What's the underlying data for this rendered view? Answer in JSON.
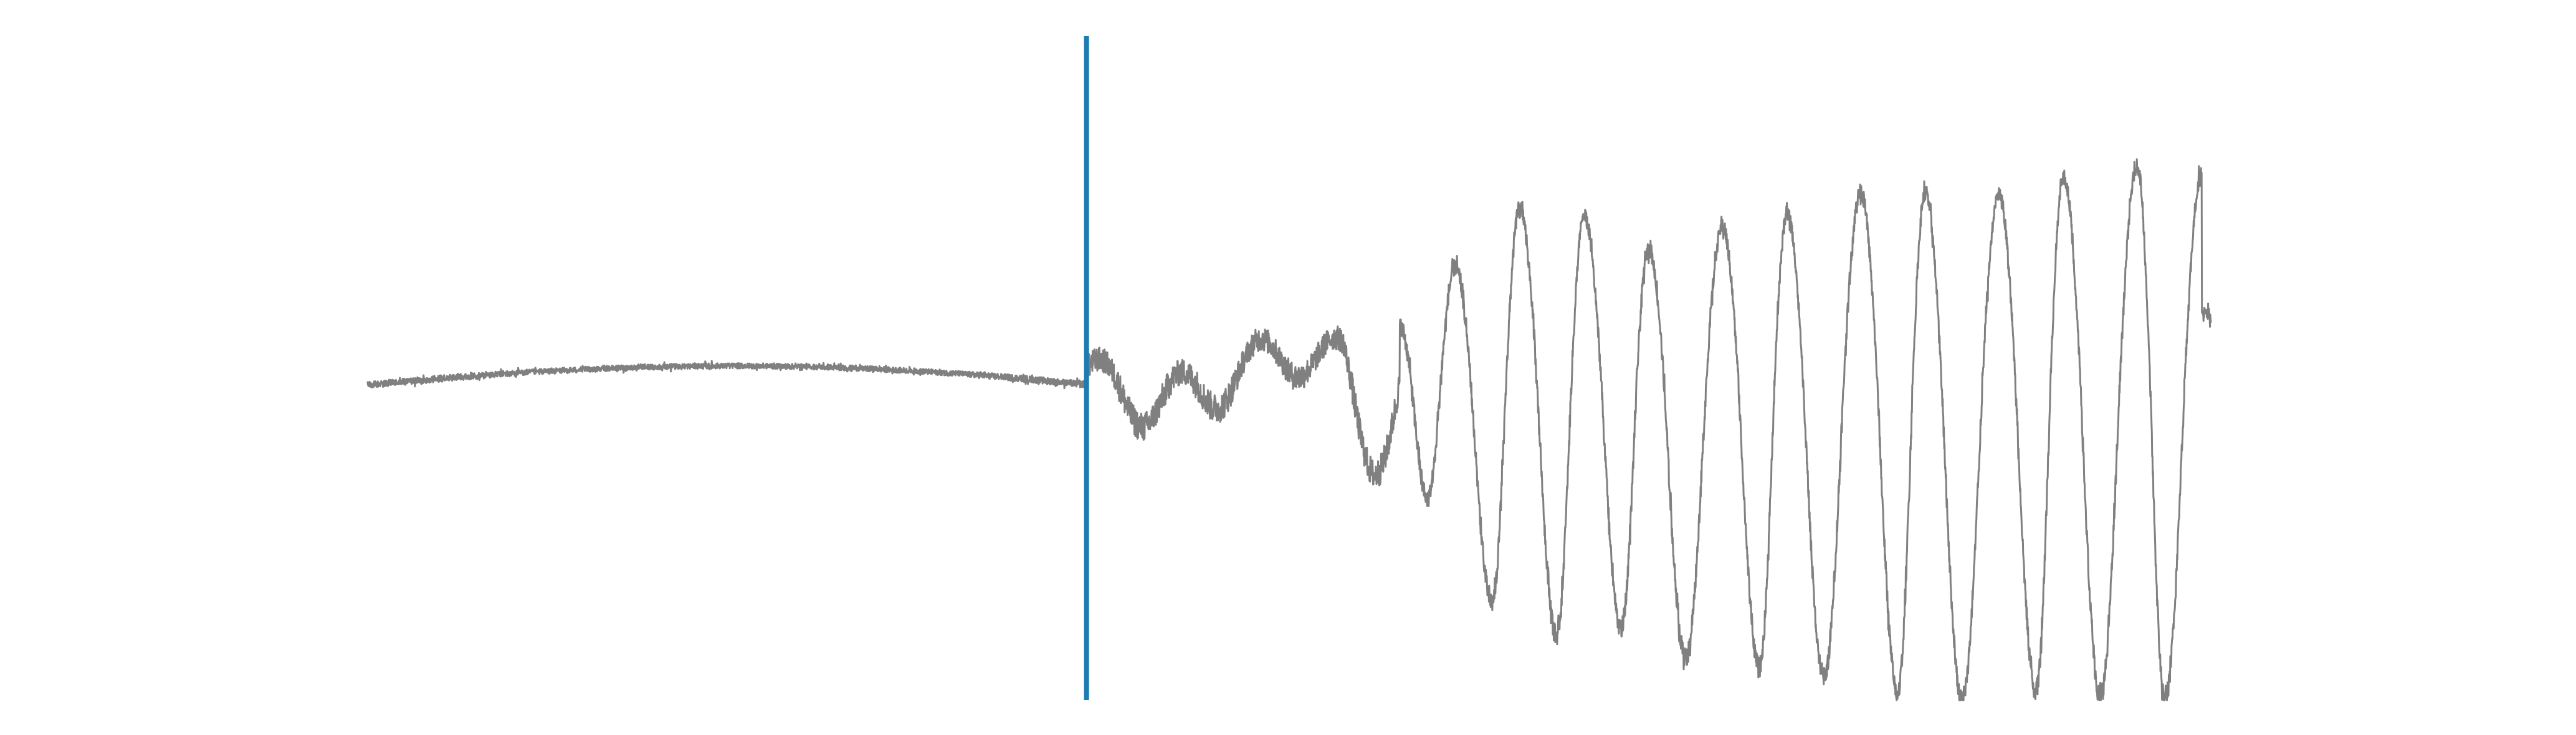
{
  "chart_data": {
    "type": "line",
    "title": "",
    "xlabel": "",
    "ylabel": "",
    "grid": false,
    "legend": "none",
    "xlim": [
      0,
      1
    ],
    "ylim": [
      -1,
      1
    ],
    "playhead_position": 0.39,
    "series": [
      {
        "color": "#808080",
        "segments": [
          {
            "x": [
              0.0,
              0.39
            ],
            "style": "quiet-drift",
            "amplitude": 0.02,
            "drift": [
              -0.06,
              0.06,
              0.0
            ]
          },
          {
            "x": [
              0.39,
              0.56
            ],
            "style": "noisy-low-oscillation",
            "amplitude": 0.14,
            "cycles": 4
          },
          {
            "x": [
              0.56,
              1.0
            ],
            "style": "large-oscillation",
            "amplitude_start": 0.55,
            "amplitude_end": 0.95,
            "cycles": 11.5
          }
        ],
        "peaks": [
          {
            "x": 0.59,
            "y": 0.4
          },
          {
            "x": 0.625,
            "y": 0.62
          },
          {
            "x": 0.66,
            "y": 0.59
          },
          {
            "x": 0.695,
            "y": 0.47
          },
          {
            "x": 0.735,
            "y": 0.55
          },
          {
            "x": 0.77,
            "y": 0.6
          },
          {
            "x": 0.81,
            "y": 0.68
          },
          {
            "x": 0.845,
            "y": 0.68
          },
          {
            "x": 0.885,
            "y": 0.67
          },
          {
            "x": 0.92,
            "y": 0.74
          },
          {
            "x": 0.96,
            "y": 0.78
          },
          {
            "x": 0.995,
            "y": 0.75
          }
        ],
        "troughs": [
          {
            "x": 0.575,
            "y": -0.38
          },
          {
            "x": 0.61,
            "y": -0.7
          },
          {
            "x": 0.645,
            "y": -0.8
          },
          {
            "x": 0.68,
            "y": -0.78
          },
          {
            "x": 0.715,
            "y": -0.87
          },
          {
            "x": 0.755,
            "y": -0.9
          },
          {
            "x": 0.79,
            "y": -0.93
          },
          {
            "x": 0.83,
            "y": -0.98
          },
          {
            "x": 0.865,
            "y": -1.0
          },
          {
            "x": 0.905,
            "y": -0.97
          },
          {
            "x": 0.94,
            "y": -0.99
          },
          {
            "x": 0.975,
            "y": -1.0
          }
        ]
      }
    ],
    "playhead_color": "#1f7bb0"
  }
}
